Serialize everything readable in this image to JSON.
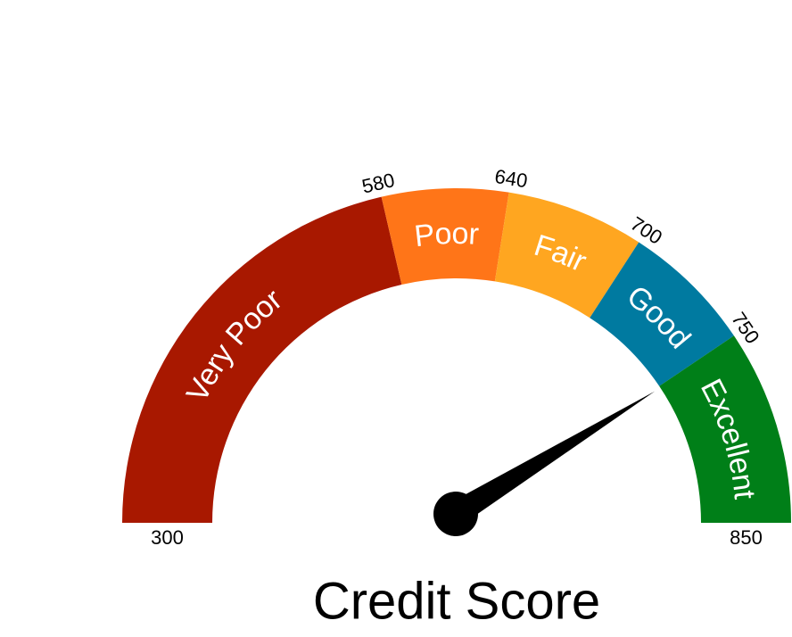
{
  "chart_data": {
    "type": "gauge",
    "title": "Credit Score",
    "bands": [
      {
        "name": "Very Poor",
        "from": 300,
        "to": 580,
        "color": "#a81800"
      },
      {
        "name": "Poor",
        "from": 580,
        "to": 640,
        "color": "#ff7518"
      },
      {
        "name": "Fair",
        "from": 640,
        "to": 700,
        "color": "#ffa620"
      },
      {
        "name": "Good",
        "from": 700,
        "to": 750,
        "color": "#007aa0"
      },
      {
        "name": "Excellent",
        "from": 750,
        "to": 850,
        "color": "#007f18"
      }
    ],
    "ticks": [
      300,
      580,
      640,
      700,
      750,
      850
    ],
    "value": 757,
    "needle_color": "#000000"
  }
}
